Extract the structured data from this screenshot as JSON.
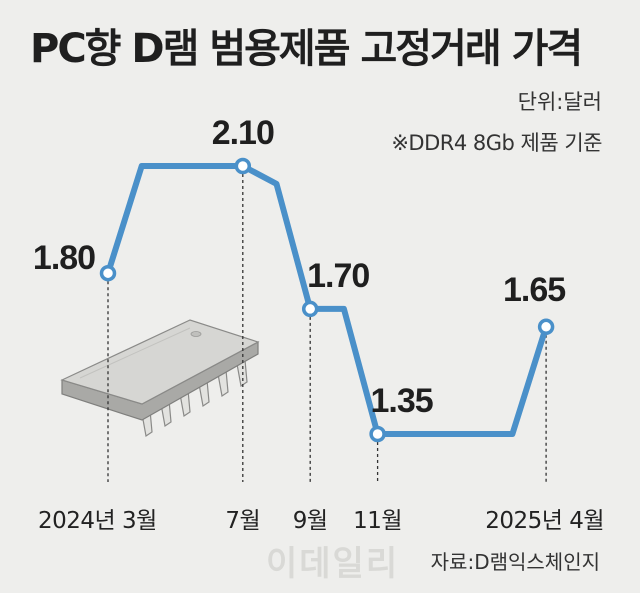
{
  "title": "PC향 D램 범용제품 고정거래 가격",
  "unit_note": "단위:달러",
  "spec_note": "※DDR4 8Gb 제품 기준",
  "source": "자료:D램익스체인지",
  "watermark": "이데일리",
  "colors": {
    "line": "#4a90c9",
    "background": "#eeeeec",
    "text": "#222222",
    "chip": "#d6d6d3"
  },
  "icons": {
    "illustration": "memory-chip-icon"
  },
  "chart_data": {
    "type": "line",
    "title": "PC향 D램 범용제품 고정거래 가격",
    "ylabel": "",
    "xlabel": "",
    "grid": false,
    "legend": "none",
    "ylim": [
      1.2,
      2.2
    ],
    "x": [
      "2024-03",
      "2024-04",
      "2024-05",
      "2024-06",
      "2024-07",
      "2024-08",
      "2024-09",
      "2024-10",
      "2024-11",
      "2024-12",
      "2025-01",
      "2025-02",
      "2025-03",
      "2025-04"
    ],
    "values": [
      1.8,
      2.1,
      2.1,
      2.1,
      2.1,
      2.05,
      1.7,
      1.7,
      1.35,
      1.35,
      1.35,
      1.35,
      1.35,
      1.65
    ],
    "x_tick_labels": [
      {
        "x": "2024-03",
        "label": "2024년 3월"
      },
      {
        "x": "2024-07",
        "label": "7월"
      },
      {
        "x": "2024-09",
        "label": "9월"
      },
      {
        "x": "2024-11",
        "label": "11월"
      },
      {
        "x": "2025-04",
        "label": "2025년 4월"
      }
    ],
    "data_labels": [
      {
        "x": "2024-03",
        "value": 1.8,
        "label": "1.80"
      },
      {
        "x": "2024-07",
        "value": 2.1,
        "label": "2.10"
      },
      {
        "x": "2024-09",
        "value": 1.7,
        "label": "1.70"
      },
      {
        "x": "2024-11",
        "value": 1.35,
        "label": "1.35"
      },
      {
        "x": "2025-04",
        "value": 1.65,
        "label": "1.65"
      }
    ]
  }
}
